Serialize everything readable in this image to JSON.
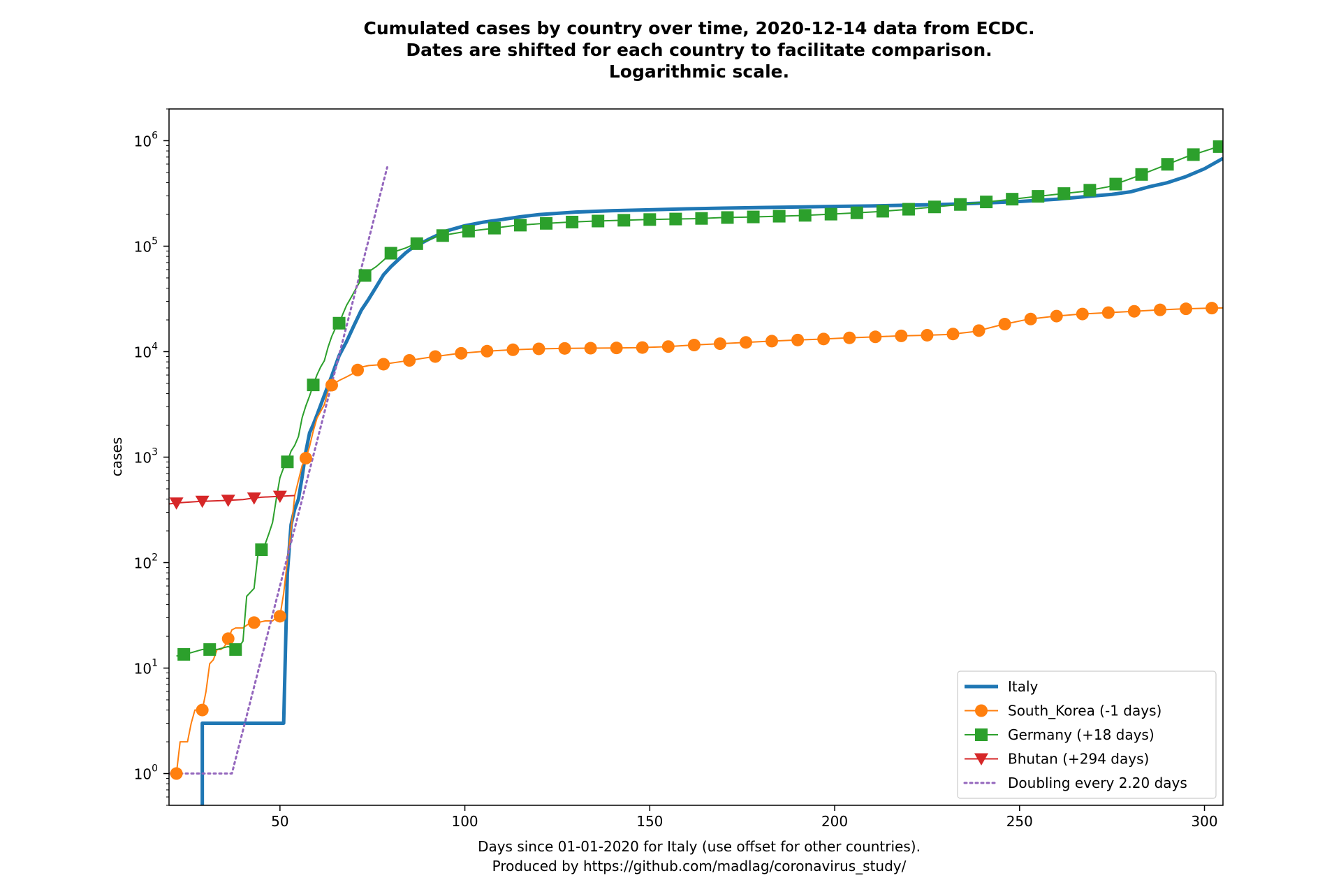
{
  "chart_data": {
    "type": "line",
    "title_lines": [
      "Cumulated cases by country over time, 2020-12-14 data from ECDC.",
      "Dates are shifted for each country to facilitate comparison.",
      "Logarithmic scale."
    ],
    "xlabel_lines": [
      "Days since 01-01-2020 for Italy (use offset for other countries).",
      "Produced by https://github.com/madlag/coronavirus_study/"
    ],
    "ylabel": "cases",
    "y_scale": "log",
    "xlim": [
      20,
      305
    ],
    "ylim": [
      0.5,
      2000000
    ],
    "x_ticks": [
      50,
      100,
      150,
      200,
      250,
      300
    ],
    "x_tick_labels": [
      "50",
      "100",
      "150",
      "200",
      "250",
      "300"
    ],
    "y_ticks": [
      1,
      10,
      100,
      1000,
      10000,
      100000,
      1000000
    ],
    "y_tick_labels": [
      {
        "base": "10",
        "exp": "0"
      },
      {
        "base": "10",
        "exp": "1"
      },
      {
        "base": "10",
        "exp": "2"
      },
      {
        "base": "10",
        "exp": "3"
      },
      {
        "base": "10",
        "exp": "4"
      },
      {
        "base": "10",
        "exp": "5"
      },
      {
        "base": "10",
        "exp": "6"
      }
    ],
    "grid": false,
    "legend_position": "bottom-right",
    "series": [
      {
        "name": "Italy",
        "color": "#1f77b4",
        "marker": "none",
        "line": "solid-thick",
        "x": [
          29,
          29,
          30,
          51,
          51,
          52,
          53,
          54,
          55,
          56,
          57,
          58,
          59,
          60,
          62,
          64,
          66,
          68,
          70,
          72,
          74,
          76,
          78,
          80,
          82,
          84,
          86,
          88,
          90,
          95,
          100,
          105,
          110,
          115,
          120,
          130,
          140,
          150,
          160,
          170,
          180,
          190,
          200,
          210,
          220,
          230,
          240,
          250,
          260,
          270,
          275,
          280,
          285,
          290,
          295,
          300,
          305
        ],
        "y": [
          0.5,
          3,
          3,
          3,
          3,
          79,
          229,
          322,
          400,
          650,
          1128,
          1694,
          2036,
          2502,
          3858,
          5883,
          9172,
          12462,
          17660,
          24747,
          31506,
          41035,
          53578,
          63927,
          74386,
          86498,
          97689,
          105792,
          115242,
          139422,
          156363,
          168941,
          178972,
          189973,
          199414,
          210717,
          217185,
          221216,
          225886,
          229327,
          232664,
          235278,
          238159,
          240578,
          244752,
          249204,
          256118,
          265409,
          278784,
          299506,
          310000,
          327586,
          365467,
          400000,
          457000,
          542000,
          680000
        ]
      },
      {
        "name": "South_Korea (-1 days)",
        "color": "#ff7f0e",
        "marker": "circle",
        "marker_every": 7,
        "line": "solid",
        "x": [
          20,
          22,
          23,
          25,
          26,
          27,
          28,
          29,
          30,
          31,
          32,
          33,
          34,
          35,
          36,
          37,
          38,
          40,
          42,
          44,
          46,
          48,
          49,
          50,
          51,
          52,
          53,
          54,
          55,
          56,
          57,
          58,
          59,
          60,
          62,
          63,
          64,
          66,
          68,
          70,
          72,
          74,
          77,
          84,
          91,
          98,
          105,
          112,
          119,
          126,
          133,
          140,
          147,
          154,
          161,
          168,
          175,
          182,
          189,
          196,
          203,
          210,
          217,
          224,
          231,
          238,
          245,
          252,
          259,
          266,
          273,
          280,
          287,
          294,
          301,
          305
        ],
        "y": [
          1,
          1,
          2,
          2,
          3,
          4,
          4,
          4,
          6,
          11,
          12,
          15,
          15,
          16,
          19,
          23,
          24,
          24,
          27,
          27,
          28,
          28,
          30,
          31,
          51,
          104,
          204,
          433,
          602,
          833,
          977,
          1261,
          1766,
          2337,
          3150,
          4212,
          4812,
          5328,
          5766,
          6284,
          7134,
          7382,
          7513,
          8162,
          8897,
          9583,
          10062,
          10384,
          10613,
          10728,
          10780,
          10840,
          10909,
          11122,
          11503,
          11852,
          12198,
          12535,
          12850,
          13137,
          13479,
          13771,
          14092,
          14269,
          14562,
          15515,
          17945,
          20182,
          21588,
          22657,
          23341,
          24027,
          24805,
          25424,
          25836,
          26000
        ]
      },
      {
        "name": "Germany (+18 days)",
        "color": "#2ca02c",
        "marker": "square",
        "marker_every": 7,
        "line": "solid",
        "x": [
          22,
          26,
          29,
          30,
          33,
          36,
          38,
          39,
          40,
          41,
          43,
          44,
          46,
          47,
          48,
          49,
          50,
          51,
          52,
          53,
          54,
          55,
          56,
          57,
          58,
          59,
          60,
          61,
          62,
          63,
          64,
          65,
          66,
          67,
          68,
          69,
          70,
          71,
          72,
          74,
          76,
          78,
          80,
          82,
          84,
          86,
          88,
          90,
          92,
          96,
          100,
          106,
          113,
          120,
          127,
          134,
          141,
          148,
          155,
          162,
          169,
          176,
          183,
          190,
          197,
          204,
          211,
          218,
          225,
          232,
          239,
          246,
          253,
          260,
          267,
          274,
          281,
          288,
          295,
          302,
          305
        ],
        "y": [
          13,
          14,
          15,
          15,
          15,
          16,
          15,
          16,
          18,
          48,
          57,
          117,
          150,
          188,
          240,
          400,
          639,
          795,
          902,
          1139,
          1296,
          1567,
          2369,
          3062,
          3795,
          4838,
          6012,
          7156,
          8198,
          10999,
          13957,
          16662,
          18610,
          22672,
          27436,
          31554,
          36508,
          42288,
          48582,
          57298,
          63929,
          73522,
          85778,
          91159,
          96092,
          103228,
          108202,
          113525,
          122171,
          130072,
          137439,
          145184,
          156337,
          163175,
          168162,
          172239,
          175233,
          178281,
          180458,
          182196,
          186269,
          188534,
          191449,
          194693,
          199709,
          205269,
          212022,
          220859,
          232082,
          244802,
          258480,
          274158,
          291722,
          310144,
          329453,
          365677,
          449275,
          560379,
          701000,
          840000,
          900000
        ]
      },
      {
        "name": "Bhutan (+294 days)",
        "color": "#d62728",
        "marker": "triangle-down",
        "marker_every": 7,
        "line": "solid",
        "x": [
          20,
          23,
          28,
          35,
          40,
          42,
          45,
          49,
          52,
          54
        ],
        "y": [
          360,
          370,
          380,
          388,
          396,
          405,
          417,
          423,
          429,
          432
        ]
      },
      {
        "name": "Doubling every 2.20 days",
        "color": "#9467bd",
        "marker": "none",
        "line": "dotted",
        "x": [
          20,
          37,
          79
        ],
        "y": [
          1,
          1,
          560000
        ]
      }
    ]
  }
}
